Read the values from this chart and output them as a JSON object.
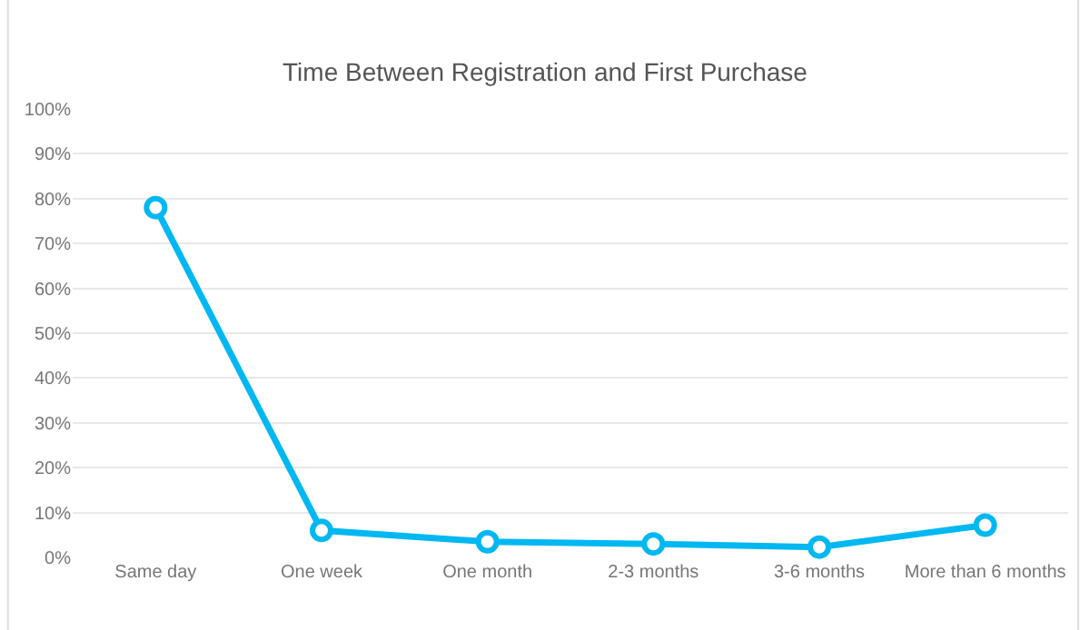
{
  "chart_data": {
    "type": "line",
    "title": "Time Between Registration and First Purchase",
    "categories": [
      "Same day",
      "One week",
      "One month",
      "2-3 months",
      "3-6 months",
      "More than 6 months"
    ],
    "series": [
      {
        "color": "#00b8f1",
        "values": [
          78,
          6,
          3.5,
          3,
          2.3,
          7.2
        ]
      }
    ],
    "ylim": [
      0,
      100
    ],
    "yticks": [
      {
        "value": 0,
        "label": "0%"
      },
      {
        "value": 10,
        "label": "10%"
      },
      {
        "value": 20,
        "label": "20%"
      },
      {
        "value": 30,
        "label": "30%"
      },
      {
        "value": 40,
        "label": "40%"
      },
      {
        "value": 50,
        "label": "50%"
      },
      {
        "value": 60,
        "label": "60%"
      },
      {
        "value": 70,
        "label": "70%"
      },
      {
        "value": 80,
        "label": "80%"
      },
      {
        "value": 90,
        "label": "90%"
      },
      {
        "value": 100,
        "label": "100%"
      }
    ],
    "grid": "y",
    "marker": "circle",
    "line_style": "solid",
    "legend": false
  }
}
